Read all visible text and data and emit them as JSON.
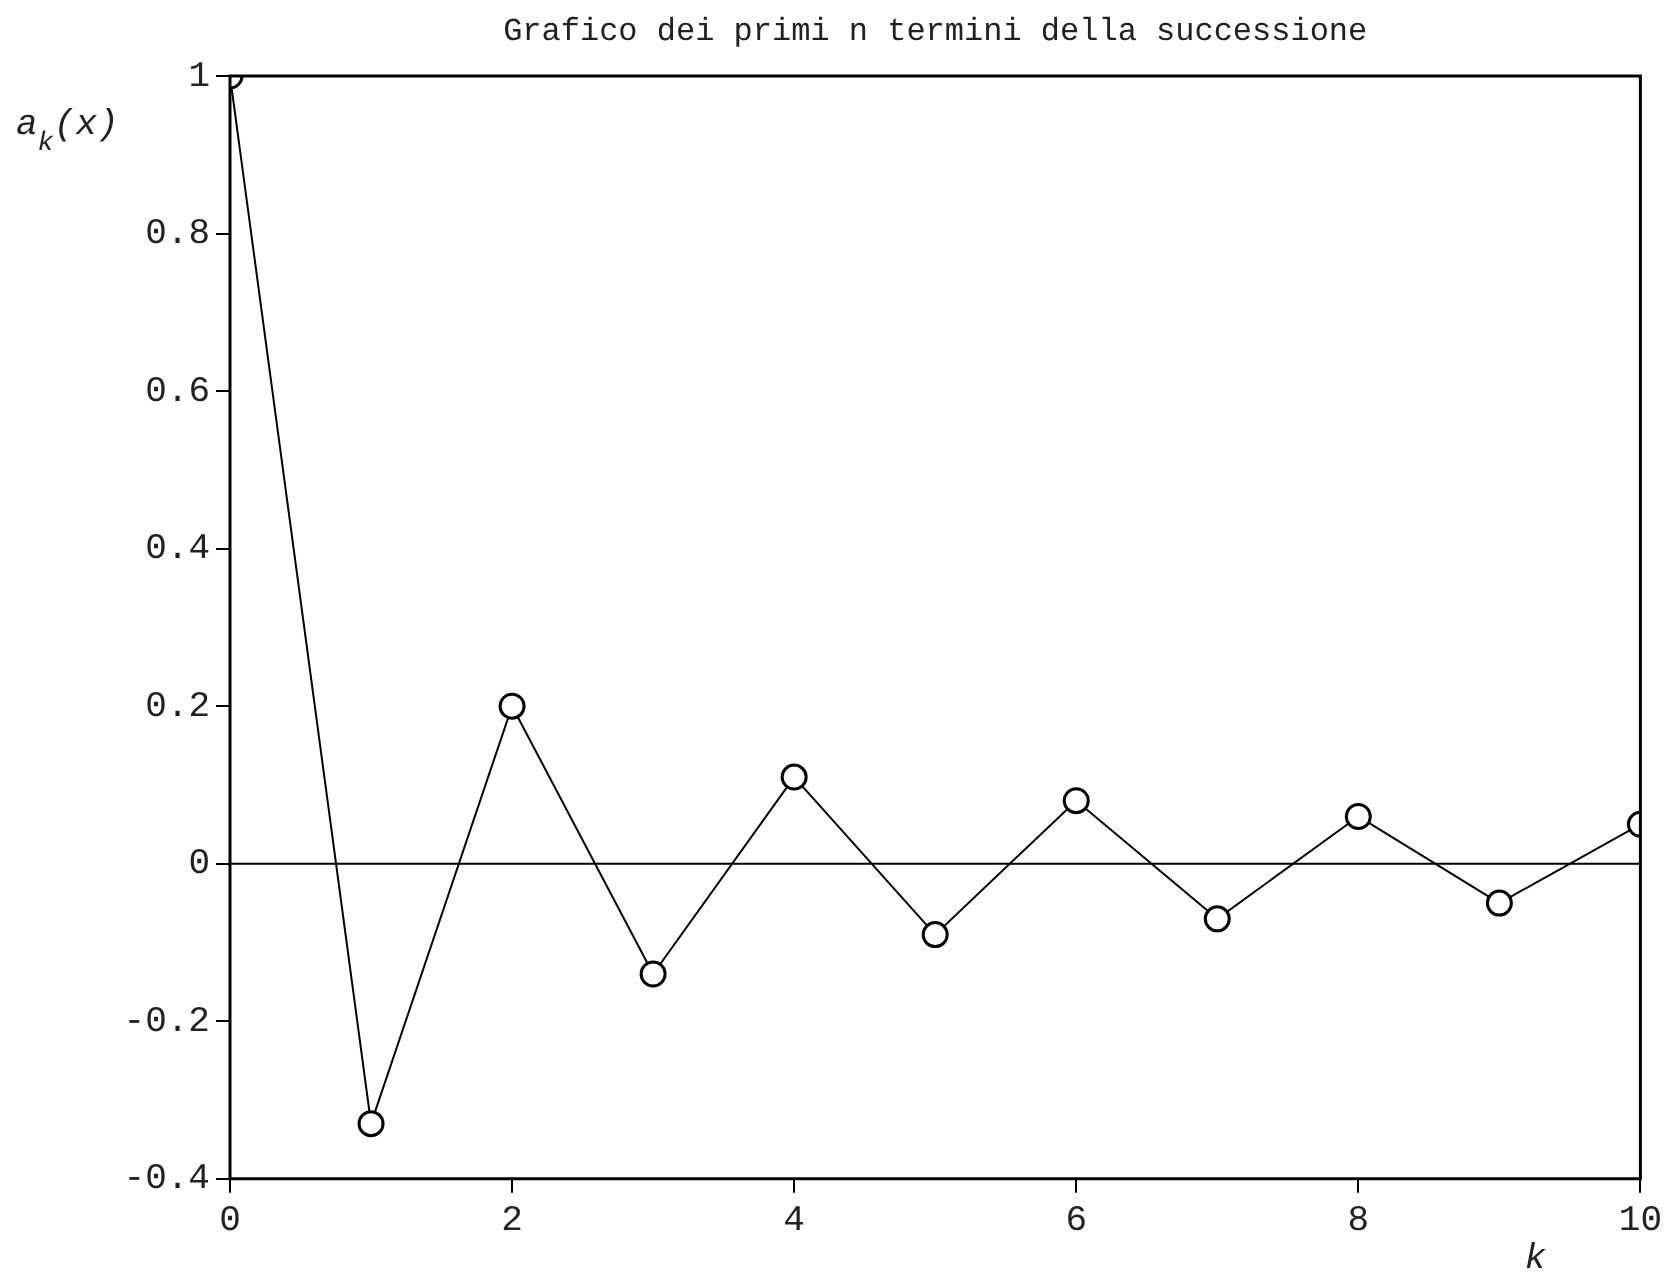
{
  "chart_data": {
    "type": "line",
    "title": "Grafico dei primi n termini della successione",
    "xlabel": "k",
    "ylabel": "a$_{k}$(x)",
    "x": [
      0,
      1,
      2,
      3,
      4,
      5,
      6,
      7,
      8,
      9,
      10
    ],
    "series": [
      {
        "color": "#000000",
        "values": [
          1,
          -0.33,
          0.2,
          -0.14,
          0.11,
          -0.09,
          0.08,
          -0.07,
          0.06,
          -0.05,
          0.05
        ]
      }
    ],
    "xlim": [
      0,
      10
    ],
    "xticks": [
      0,
      2,
      4,
      6,
      8,
      10
    ],
    "ylim": [
      -0.4,
      1
    ],
    "yticks": [
      -0.4,
      -0.2,
      0,
      0.2,
      0.4,
      0.6,
      0.8,
      1
    ],
    "ref_lines": [
      {
        "axis": "y",
        "value": 0,
        "color": "#000000"
      }
    ],
    "grid": false,
    "legend": false,
    "marker": "circle",
    "line_style": "solid"
  }
}
